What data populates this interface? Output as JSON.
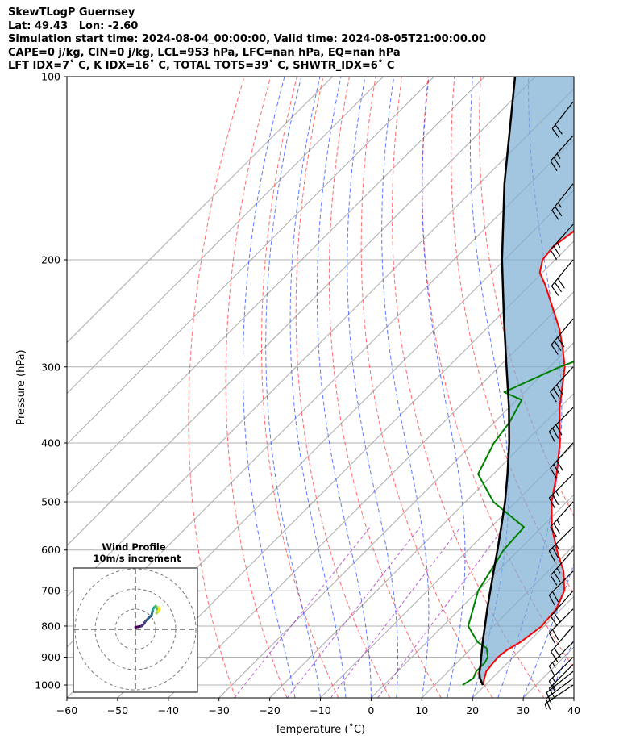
{
  "header": {
    "line1": "SkewTLogP Guernsey",
    "line2": "Lat: 49.43   Lon: -2.60",
    "line3": "Simulation start time: 2024-08-04_00:00:00, Valid time: 2024-08-05T21:00:00.00",
    "line4": "CAPE=0 j/kg, CIN=0 j/kg, LCL=953 hPa, LFC=nan hPa, EQ=nan hPa",
    "line5": "LFT IDX=7˚ C, K IDX=16˚ C, TOTAL TOTS=39˚ C, SHWTR_IDX=6˚ C"
  },
  "inset": {
    "title1": "Wind Profile",
    "title2": "10m/s increment"
  },
  "colors": {
    "temperature": "#ff0000",
    "dewpoint": "#008000",
    "parcel": "#000000",
    "cape_fill": "#7aaed3",
    "dry_adiabat": "#ff4444",
    "moist_adiabat": "#3355ff",
    "mixing_ratio": "#aa33cc",
    "isotherm": "#aaaaaa"
  },
  "chart_data": {
    "type": "line",
    "title": "SkewTLogP Guernsey",
    "xlabel": "Temperature (˚C)",
    "ylabel": "Pressure (hPa)",
    "xlim": [
      -60,
      40
    ],
    "ylim": [
      1050,
      100
    ],
    "y_scale": "log",
    "skew": true,
    "x_ticks": [
      -60,
      -50,
      -40,
      -30,
      -20,
      -10,
      0,
      10,
      20,
      30,
      40
    ],
    "x_tick_labels": [
      "−60",
      "−50",
      "−40",
      "−30",
      "−20",
      "−10",
      "0",
      "10",
      "20",
      "30",
      "40"
    ],
    "y_ticks": [
      1000,
      900,
      800,
      700,
      600,
      500,
      400,
      300,
      200,
      100
    ],
    "y_tick_labels": [
      "1000",
      "900",
      "800",
      "700",
      "600",
      "500",
      "400",
      "300",
      "200",
      "100"
    ],
    "grid": true,
    "series": [
      {
        "name": "Temperature",
        "points": [
          [
            1000,
            19.5
          ],
          [
            975,
            18.5
          ],
          [
            950,
            17.5
          ],
          [
            925,
            17.2
          ],
          [
            900,
            17.0
          ],
          [
            875,
            17.4
          ],
          [
            850,
            18.5
          ],
          [
            800,
            19.5
          ],
          [
            750,
            19.0
          ],
          [
            700,
            17.0
          ],
          [
            650,
            13.0
          ],
          [
            600,
            7.5
          ],
          [
            550,
            2.0
          ],
          [
            500,
            -3.0
          ],
          [
            450,
            -7.5
          ],
          [
            400,
            -13.0
          ],
          [
            350,
            -20.0
          ],
          [
            300,
            -27.0
          ],
          [
            280,
            -31.0
          ],
          [
            260,
            -35.5
          ],
          [
            240,
            -41.0
          ],
          [
            220,
            -47.0
          ],
          [
            210,
            -50.5
          ],
          [
            200,
            -52.5
          ],
          [
            190,
            -53.0
          ],
          [
            180,
            -52.0
          ],
          [
            170,
            -52.0
          ],
          [
            160,
            -52.5
          ],
          [
            150,
            -52.5
          ],
          [
            140,
            -53.5
          ],
          [
            130,
            -55.5
          ],
          [
            120,
            -59.0
          ],
          [
            110,
            -63.0
          ],
          [
            100,
            -67.0
          ]
        ]
      },
      {
        "name": "Dewpoint",
        "points": [
          [
            1000,
            15.5
          ],
          [
            975,
            16.3
          ],
          [
            950,
            15.5
          ],
          [
            920,
            15.5
          ],
          [
            900,
            15.0
          ],
          [
            870,
            13.0
          ],
          [
            850,
            10.0
          ],
          [
            800,
            5.0
          ],
          [
            700,
            0.0
          ],
          [
            600,
            -3.0
          ],
          [
            550,
            -3.5
          ],
          [
            520,
            -10.0
          ],
          [
            500,
            -14.5
          ],
          [
            450,
            -23.0
          ],
          [
            400,
            -26.0
          ],
          [
            370,
            -27.0
          ],
          [
            340,
            -29.0
          ],
          [
            330,
            -34.0
          ],
          [
            300,
            -28.0
          ],
          [
            290,
            -25.0
          ],
          [
            270,
            -26.5
          ],
          [
            250,
            -30.0
          ],
          [
            220,
            -36.0
          ],
          [
            200,
            -41.0
          ],
          [
            190,
            -40.0
          ],
          [
            180,
            -41.5
          ],
          [
            170,
            -44.5
          ],
          [
            160,
            -48.0
          ],
          [
            150,
            -58.0
          ],
          [
            140,
            -57.0
          ],
          [
            130,
            -56.5
          ],
          [
            120,
            -57.0
          ],
          [
            110,
            -58.0
          ],
          [
            100,
            -59.0
          ]
        ]
      },
      {
        "name": "Parcel",
        "points": [
          [
            1000,
            19.5
          ],
          [
            975,
            17.6
          ],
          [
            953,
            16.3
          ],
          [
            925,
            15.0
          ],
          [
            900,
            13.7
          ],
          [
            850,
            11.0
          ],
          [
            800,
            8.3
          ],
          [
            750,
            5.4
          ],
          [
            700,
            2.4
          ],
          [
            650,
            -0.8
          ],
          [
            600,
            -4.2
          ],
          [
            550,
            -8.0
          ],
          [
            500,
            -12.2
          ],
          [
            450,
            -17.2
          ],
          [
            400,
            -23.0
          ],
          [
            350,
            -30.0
          ],
          [
            300,
            -38.5
          ],
          [
            250,
            -48.5
          ],
          [
            200,
            -60.5
          ],
          [
            150,
            -75.0
          ],
          [
            100,
            -94.0
          ]
        ]
      }
    ],
    "dry_adiabats_theta_K": [
      243,
      253,
      263,
      273,
      283,
      293,
      303,
      313,
      323,
      333
    ],
    "moist_adiabats_start_C": [
      -15,
      -10,
      -5,
      0,
      5,
      10,
      15,
      20,
      25,
      30,
      35
    ],
    "mixing_ratio_lines_gkg": [
      0.4,
      1,
      2,
      4
    ],
    "wind_barbs": [
      {
        "p": 1000,
        "u": 3,
        "v": 2
      },
      {
        "p": 975,
        "u": 4,
        "v": 3
      },
      {
        "p": 950,
        "u": 5,
        "v": 4
      },
      {
        "p": 925,
        "u": 5,
        "v": 5
      },
      {
        "p": 900,
        "u": 5,
        "v": 5
      },
      {
        "p": 850,
        "u": 6,
        "v": 6
      },
      {
        "p": 800,
        "u": 6,
        "v": 7
      },
      {
        "p": 750,
        "u": 7,
        "v": 7
      },
      {
        "p": 700,
        "u": 7,
        "v": 8
      },
      {
        "p": 650,
        "u": 8,
        "v": 8
      },
      {
        "p": 600,
        "u": 8,
        "v": 9
      },
      {
        "p": 550,
        "u": 9,
        "v": 9
      },
      {
        "p": 500,
        "u": 9,
        "v": 10
      },
      {
        "p": 450,
        "u": 10,
        "v": 10
      },
      {
        "p": 400,
        "u": 10,
        "v": 11
      },
      {
        "p": 350,
        "u": 11,
        "v": 11
      },
      {
        "p": 300,
        "u": 11,
        "v": 12
      },
      {
        "p": 250,
        "u": 10,
        "v": 12
      },
      {
        "p": 200,
        "u": 9,
        "v": 11
      },
      {
        "p": 175,
        "u": 9,
        "v": 10
      },
      {
        "p": 150,
        "u": 8,
        "v": 10
      },
      {
        "p": 125,
        "u": 8,
        "v": 9
      },
      {
        "p": 110,
        "u": 7,
        "v": 9
      }
    ],
    "hodograph": {
      "rings_ms": [
        10,
        20,
        30
      ],
      "points_uv": [
        [
          0,
          1
        ],
        [
          1,
          1.2
        ],
        [
          2,
          1.4
        ],
        [
          3,
          1.6
        ],
        [
          4,
          2.5
        ],
        [
          5,
          4
        ],
        [
          6,
          5
        ],
        [
          7,
          6
        ],
        [
          8,
          7
        ],
        [
          8.5,
          9
        ],
        [
          8.6,
          10
        ],
        [
          9.5,
          11
        ],
        [
          10,
          11.5
        ],
        [
          10.5,
          11
        ],
        [
          11,
          10
        ],
        [
          11.2,
          9
        ],
        [
          10.5,
          8
        ],
        [
          11.5,
          9
        ],
        [
          12,
          10
        ],
        [
          11.5,
          11
        ]
      ]
    }
  }
}
